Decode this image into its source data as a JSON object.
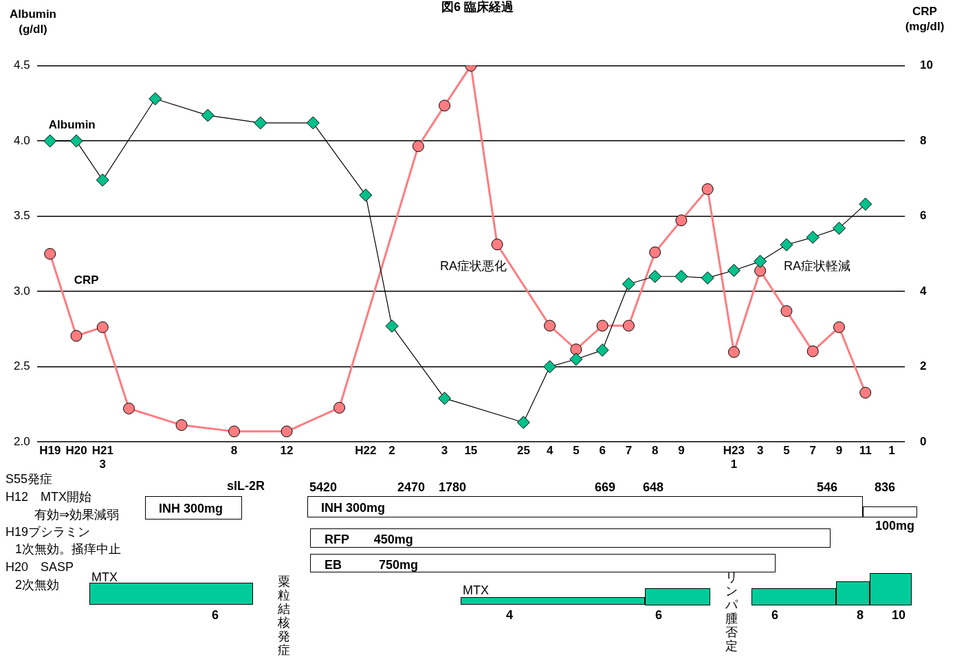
{
  "chart_data": {
    "type": "line",
    "title": "図6 臨床経過",
    "ylabel": "Albumin\n(g/dl)",
    "y2label": "CRP\n(mg/dl)",
    "categories": [
      "H19",
      "H20",
      "H21\n3",
      null,
      null,
      null,
      null,
      "8",
      null,
      "12",
      null,
      null,
      "H22",
      "2",
      null,
      "3",
      "15",
      null,
      "25",
      "4",
      "5",
      "6",
      "7",
      "8",
      "9",
      null,
      "H23\n1",
      "3",
      "5",
      "7",
      "9",
      "11",
      "1"
    ],
    "series": [
      {
        "name": "Albumin",
        "color": "#00c08b",
        "marker": "diamond",
        "values": [
          4.0,
          4.0,
          3.74,
          null,
          4.28,
          null,
          4.17,
          null,
          4.12,
          null,
          4.12,
          null,
          3.64,
          2.77,
          null,
          2.29,
          null,
          null,
          2.13,
          2.5,
          2.55,
          2.61,
          3.05,
          3.1,
          3.1,
          3.09,
          3.14,
          3.2,
          3.31,
          3.36,
          3.42,
          3.58,
          null
        ]
      },
      {
        "name": "CRP",
        "color": "#ff7c80",
        "marker": "circle",
        "axis": "y2",
        "values": [
          5.0,
          2.82,
          3.05,
          0.89,
          null,
          0.45,
          null,
          0.28,
          null,
          0.28,
          null,
          0.91,
          null,
          null,
          7.86,
          8.94,
          10.0,
          5.25,
          null,
          3.09,
          2.46,
          3.09,
          3.09,
          5.04,
          5.89,
          6.72,
          2.39,
          4.55,
          3.48,
          2.41,
          3.05,
          1.31,
          null
        ]
      }
    ],
    "ylim": [
      2.0,
      4.5
    ],
    "yticks": [
      {
        "value": 2,
        "label": "2.0"
      },
      2.5,
      {
        "value": 3,
        "label": "3.0"
      },
      3.5,
      {
        "value": 4,
        "label": "4.0"
      },
      4.5
    ],
    "y2lim": [
      0,
      10
    ],
    "y2ticks": [
      0,
      2,
      4,
      6,
      8,
      10
    ],
    "grid": "y",
    "legend": false,
    "annotations": [
      "RA症状悪化",
      "RA症状軽減",
      "S55発症",
      "H12　MTX開始",
      "有効⇒効果減弱",
      "H19ブシラミン",
      "1次無効。掻痒中止",
      "H20　SASP",
      "2次無効",
      "sIL-2R",
      "5420",
      "2470",
      "1780",
      "669",
      "648",
      "546",
      "836",
      "INH 300mg",
      "INH 300mg",
      "100mg",
      "RFP　　450mg",
      "EB　　　750mg",
      "MTX",
      "6",
      "粟粒結核発症",
      "MTX",
      "4",
      "6",
      "リンパ腫否定",
      "6",
      "8",
      "10"
    ]
  }
}
